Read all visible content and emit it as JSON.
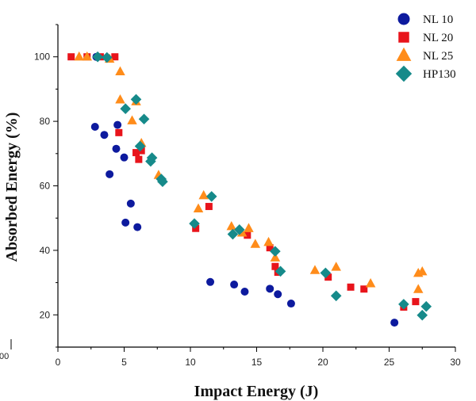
{
  "chart_data": {
    "type": "scatter",
    "title": "",
    "xlabel": "Impact Energy (J)",
    "ylabel": "Absorbed Energy (%)",
    "xlim": [
      0,
      30
    ],
    "ylim": [
      10,
      110
    ],
    "xticks": [
      0,
      5,
      10,
      15,
      20,
      25,
      30
    ],
    "yticks": [
      20,
      40,
      60,
      80,
      100
    ],
    "stray_label": "00",
    "legend_position": "top-right",
    "series": [
      {
        "name": "NL 10",
        "marker": "circle",
        "color": "#0d1a9e",
        "points": [
          [
            2.9,
            100
          ],
          [
            2.8,
            78.3
          ],
          [
            3.5,
            75.8
          ],
          [
            4.5,
            78.9
          ],
          [
            4.4,
            71.5
          ],
          [
            3.9,
            63.6
          ],
          [
            5.0,
            68.8
          ],
          [
            5.5,
            54.5
          ],
          [
            5.1,
            48.6
          ],
          [
            6.0,
            47.2
          ],
          [
            11.5,
            30.2
          ],
          [
            13.3,
            29.4
          ],
          [
            14.1,
            27.2
          ],
          [
            16.0,
            28.1
          ],
          [
            16.6,
            26.4
          ],
          [
            17.6,
            23.5
          ],
          [
            25.4,
            17.6
          ]
        ]
      },
      {
        "name": "NL 20",
        "marker": "square",
        "color": "#e8141b",
        "points": [
          [
            1.0,
            100
          ],
          [
            2.2,
            100
          ],
          [
            3.2,
            100
          ],
          [
            4.3,
            100
          ],
          [
            4.6,
            76.5
          ],
          [
            5.9,
            70.3
          ],
          [
            6.1,
            68.2
          ],
          [
            6.3,
            70.9
          ],
          [
            10.4,
            46.8
          ],
          [
            11.4,
            53.6
          ],
          [
            14.3,
            44.7
          ],
          [
            16.0,
            40.8
          ],
          [
            16.4,
            35.0
          ],
          [
            16.6,
            33.2
          ],
          [
            20.4,
            31.7
          ],
          [
            22.1,
            28.6
          ],
          [
            23.1,
            28.0
          ],
          [
            26.1,
            22.4
          ],
          [
            27.0,
            24.1
          ]
        ]
      },
      {
        "name": "NL 25",
        "marker": "triangle",
        "color": "#ff8c1a",
        "points": [
          [
            1.6,
            100
          ],
          [
            2.2,
            100
          ],
          [
            3.9,
            99.3
          ],
          [
            4.7,
            95.4
          ],
          [
            4.7,
            86.7
          ],
          [
            5.6,
            80.2
          ],
          [
            5.9,
            86.1
          ],
          [
            6.3,
            73.2
          ],
          [
            7.6,
            63.3
          ],
          [
            10.6,
            52.9
          ],
          [
            11.0,
            57.0
          ],
          [
            13.1,
            47.4
          ],
          [
            13.9,
            45.4
          ],
          [
            14.4,
            46.8
          ],
          [
            14.9,
            41.9
          ],
          [
            15.9,
            42.5
          ],
          [
            16.4,
            37.7
          ],
          [
            19.4,
            33.8
          ],
          [
            21.0,
            34.8
          ],
          [
            23.6,
            29.7
          ],
          [
            27.2,
            32.9
          ],
          [
            27.5,
            33.4
          ],
          [
            27.2,
            27.9
          ]
        ]
      },
      {
        "name": "HP130",
        "marker": "diamond",
        "color": "#168a8a",
        "points": [
          [
            3.0,
            100
          ],
          [
            3.7,
            99.8
          ],
          [
            5.1,
            83.9
          ],
          [
            5.9,
            86.8
          ],
          [
            6.5,
            80.7
          ],
          [
            6.2,
            72.3
          ],
          [
            7.0,
            67.6
          ],
          [
            7.1,
            68.7
          ],
          [
            7.9,
            61.3
          ],
          [
            7.8,
            62.1
          ],
          [
            10.3,
            48.3
          ],
          [
            11.6,
            56.7
          ],
          [
            13.2,
            45.0
          ],
          [
            13.7,
            46.4
          ],
          [
            16.4,
            39.7
          ],
          [
            16.8,
            33.5
          ],
          [
            20.2,
            33.0
          ],
          [
            21.0,
            25.9
          ],
          [
            26.1,
            23.3
          ],
          [
            27.5,
            19.9
          ],
          [
            27.8,
            22.6
          ]
        ]
      }
    ]
  }
}
